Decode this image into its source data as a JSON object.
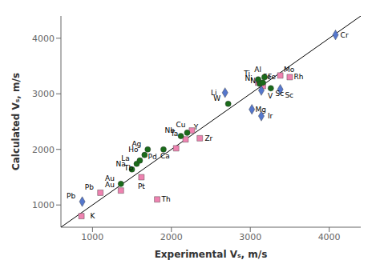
{
  "chart_data": {
    "type": "scatter",
    "xlabel": "Experimental Vₛ, m/s",
    "ylabel": "Calculated Vₛ, m/s",
    "xlim": [
      600,
      4400
    ],
    "ylim": [
      600,
      4400
    ],
    "xticks": [
      1000,
      2000,
      3000,
      4000
    ],
    "yticks": [
      1000,
      2000,
      3000,
      4000
    ],
    "grid": false,
    "series": [
      {
        "type": "line",
        "color": "#000000",
        "line_style": "solid",
        "x": [
          600,
          4400
        ],
        "values": [
          600,
          4400
        ]
      },
      {
        "type": "scatter",
        "marker": "square",
        "color": "#ee82b0",
        "x": [
          860,
          1100,
          1360,
          1620,
          1820,
          2060,
          2180,
          2260,
          2360,
          3100,
          3160,
          3380,
          3500
        ],
        "values": [
          800,
          1220,
          1260,
          1500,
          1100,
          2020,
          2180,
          2340,
          2200,
          3200,
          3140,
          3330,
          3300
        ],
        "labels": [
          "K",
          "Pb",
          "Au",
          "Pt",
          "Th",
          "Ca",
          "Ta",
          "Cu",
          "Zr",
          "Fe",
          "Ni",
          "Mo",
          "Rh"
        ]
      },
      {
        "type": "scatter",
        "marker": "diamond",
        "color": "#5577cc",
        "x": [
          870,
          2680,
          3020,
          3140,
          3140,
          3380,
          4080
        ],
        "values": [
          1060,
          3020,
          2720,
          3060,
          2600,
          3080,
          4060
        ],
        "labels": [
          "Pb",
          "Li",
          "Mg",
          "V",
          "Ir",
          "Sc",
          "Cr"
        ]
      },
      {
        "type": "scatter",
        "marker": "circle",
        "color": "#1a6b1a",
        "x": [
          1360,
          1500,
          1560,
          1600,
          1660,
          1700,
          1900,
          2120,
          2200,
          2720,
          3100,
          3120,
          3160,
          3180,
          3260
        ],
        "values": [
          1380,
          1640,
          1740,
          1800,
          1900,
          2000,
          2000,
          2240,
          2300,
          2820,
          3260,
          3180,
          3200,
          3300,
          3100
        ],
        "labels": [
          "Au",
          "Na",
          "La",
          "Tb",
          "Ho",
          "Ag",
          "Pd",
          "Nb",
          "Y",
          "W",
          "Ti",
          "Ni",
          "Fe",
          "Al",
          "Sc"
        ]
      }
    ]
  }
}
